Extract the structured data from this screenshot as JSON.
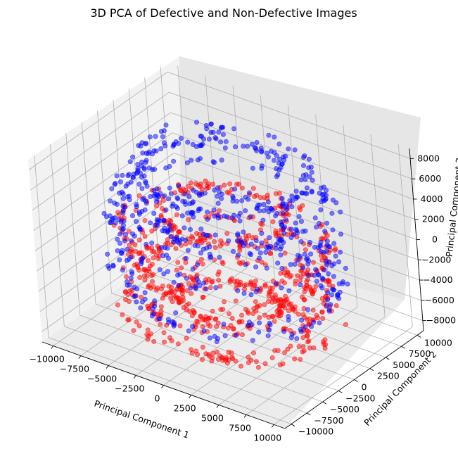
{
  "chart_data": {
    "type": "scatter",
    "subtype": "3d",
    "title": "3D PCA of Defective and Non-Defective Images",
    "xlabel": "Principal Component 1",
    "ylabel": "Principal Component 2",
    "zlabel": "Principal Component 3",
    "xlim": [
      -11000,
      11000
    ],
    "ylim": [
      -11000,
      11000
    ],
    "zlim": [
      -9000,
      9000
    ],
    "x_ticks": [
      -10000,
      -7500,
      -5000,
      -2500,
      0,
      2500,
      5000,
      7500,
      10000
    ],
    "x_tick_labels": [
      "−10000",
      "−7500",
      "−5000",
      "−2500",
      "0",
      "2500",
      "5000",
      "7500",
      "10000"
    ],
    "y_ticks": [
      -10000,
      -7500,
      -5000,
      -2500,
      0,
      2500,
      5000,
      7500,
      10000
    ],
    "y_tick_labels": [
      "−10000",
      "−7500",
      "−5000",
      "−2500",
      "0",
      "2500",
      "5000",
      "7500",
      "10000"
    ],
    "z_ticks": [
      -8000,
      -6000,
      -4000,
      -2000,
      0,
      2000,
      4000,
      6000,
      8000
    ],
    "z_tick_labels": [
      "−8000",
      "−6000",
      "−4000",
      "−2000",
      "0",
      "2000",
      "4000",
      "6000",
      "8000"
    ],
    "grid": true,
    "legend": false,
    "series": [
      {
        "color": "#ff0000",
        "alpha": 0.5,
        "points_approx": "dense cloud of roughly 2000 points, radius 3000 to 9000 around the origin, z from about -8500 to 4500",
        "rings": [
          {
            "radius": 8500,
            "z": -6500
          },
          {
            "radius": 8000,
            "z": -4000
          },
          {
            "radius": 7500,
            "z": -1500
          },
          {
            "radius": 8200,
            "z": 1000
          },
          {
            "radius": 6000,
            "z": -7500
          },
          {
            "radius": 5000,
            "z": 3000
          },
          {
            "radius": 6500,
            "z": -3000
          },
          {
            "radius": 4000,
            "z": -5500
          }
        ]
      },
      {
        "color": "#0000ff",
        "alpha": 0.5,
        "points_approx": "roughly 1500 points on concentric rings of radius 5000 to 9000, z from about -5000 to 7500",
        "rings": [
          {
            "radius": 7000,
            "z": 7500
          },
          {
            "radius": 8000,
            "z": 5500
          },
          {
            "radius": 9000,
            "z": 3000
          },
          {
            "radius": 8500,
            "z": 500
          },
          {
            "radius": 9000,
            "z": -2500
          },
          {
            "radius": 8000,
            "z": -4500
          },
          {
            "radius": 6500,
            "z": 6500
          },
          {
            "radius": 5000,
            "z": 2000
          }
        ]
      }
    ]
  }
}
